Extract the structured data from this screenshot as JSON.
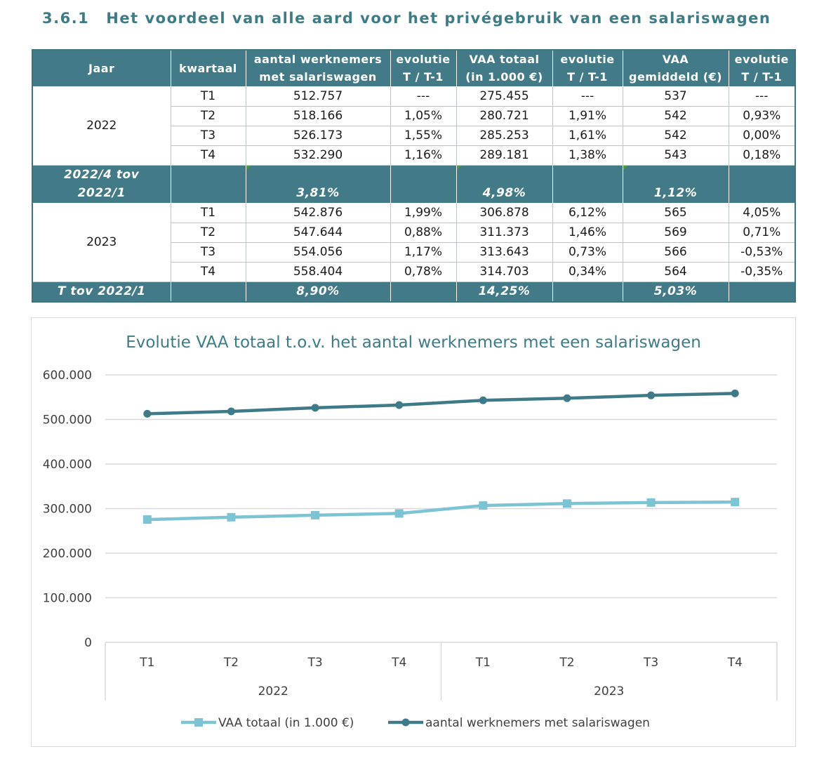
{
  "header": {
    "section_number": "3.6.1",
    "section_title": "Het voordeel van alle aard voor het privégebruik van een salariswagen"
  },
  "table": {
    "headers": [
      [
        "Jaar"
      ],
      [
        "kwartaal"
      ],
      [
        "aantal werknemers",
        "met salariswagen"
      ],
      [
        "evolutie",
        "T / T-1"
      ],
      [
        "VAA totaal",
        "(in 1.000 €)"
      ],
      [
        "evolutie",
        "T / T-1"
      ],
      [
        "VAA",
        "gemiddeld (€)"
      ],
      [
        "evolutie",
        "T / T-1"
      ]
    ],
    "groups": [
      {
        "year": "2022",
        "rows": [
          [
            "T1",
            "512.757",
            "---",
            "275.455",
            "---",
            "537",
            "---"
          ],
          [
            "T2",
            "518.166",
            "1,05%",
            "280.721",
            "1,91%",
            "542",
            "0,93%"
          ],
          [
            "T3",
            "526.173",
            "1,55%",
            "285.253",
            "1,61%",
            "542",
            "0,00%"
          ],
          [
            "T4",
            "532.290",
            "1,16%",
            "289.181",
            "1,38%",
            "543",
            "0,18%"
          ]
        ]
      },
      {
        "year": "2023",
        "rows": [
          [
            "T1",
            "542.876",
            "1,99%",
            "306.878",
            "6,12%",
            "565",
            "4,05%"
          ],
          [
            "T2",
            "547.644",
            "0,88%",
            "311.373",
            "1,46%",
            "569",
            "0,71%"
          ],
          [
            "T3",
            "554.056",
            "1,17%",
            "313.643",
            "0,73%",
            "566",
            "-0,53%"
          ],
          [
            "T4",
            "558.404",
            "0,78%",
            "314.703",
            "0,34%",
            "564",
            "-0,35%"
          ]
        ]
      }
    ],
    "summary_2022": {
      "label_line1": "2022/4 tov",
      "label_line2": "2022/1",
      "werknemers": "3,81%",
      "vaa_totaal": "4,98%",
      "vaa_gemiddeld": "1,12%"
    },
    "summary_total": {
      "label": "T tov 2022/1",
      "werknemers": "8,90%",
      "vaa_totaal": "14,25%",
      "vaa_gemiddeld": "5,03%"
    }
  },
  "colors": {
    "header_teal": "#427b87",
    "title_teal": "#3d7b87",
    "series_werknemers": "#3e7a88",
    "series_vaa": "#7cc3d4",
    "gridline": "#d9d9d9"
  },
  "chart_data": {
    "type": "line",
    "title": "Evolutie VAA totaal t.o.v. het aantal werknemers met een salariswagen",
    "categories": [
      "T1",
      "T2",
      "T3",
      "T4",
      "T1",
      "T2",
      "T3",
      "T4"
    ],
    "category_groups": [
      {
        "label": "2022",
        "count": 4
      },
      {
        "label": "2023",
        "count": 4
      }
    ],
    "series": [
      {
        "name": "VAA totaal (in 1.000 €)",
        "marker": "square",
        "values": [
          275455,
          280721,
          285253,
          289181,
          306878,
          311373,
          313643,
          314703
        ]
      },
      {
        "name": "aantal werknemers met salariswagen",
        "marker": "circle",
        "values": [
          512757,
          518166,
          526173,
          532290,
          542876,
          547644,
          554056,
          558404
        ]
      }
    ],
    "ylim": [
      0,
      600000
    ],
    "ytick_labels": [
      "0",
      "100.000",
      "200.000",
      "300.000",
      "400.000",
      "500.000",
      "600.000"
    ],
    "grid": true,
    "legend_position": "bottom"
  }
}
